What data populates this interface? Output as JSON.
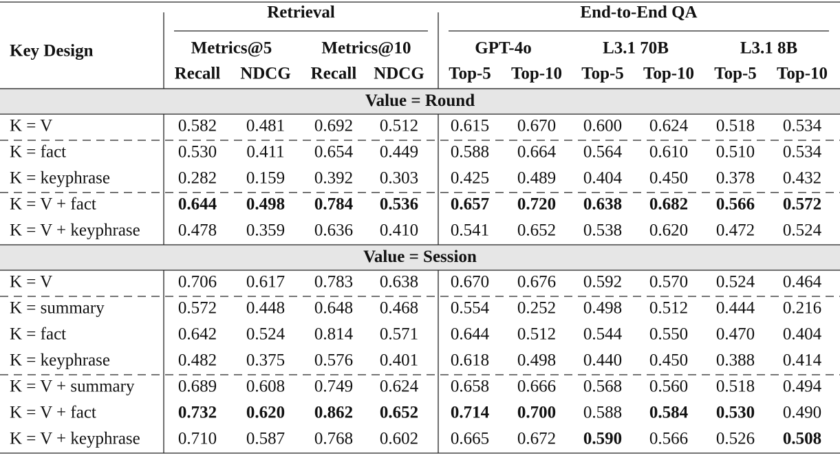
{
  "header": {
    "key_design": "Key Design",
    "groups": [
      {
        "label": "Retrieval",
        "subgroups": [
          {
            "label": "Metrics@5",
            "columns": [
              "Recall",
              "NDCG"
            ]
          },
          {
            "label": "Metrics@10",
            "columns": [
              "Recall",
              "NDCG"
            ]
          }
        ]
      },
      {
        "label": "End-to-End QA",
        "subgroups": [
          {
            "label": "GPT-4o",
            "columns": [
              "Top-5",
              "Top-10"
            ]
          },
          {
            "label": "L3.1 70B",
            "columns": [
              "Top-5",
              "Top-10"
            ]
          },
          {
            "label": "L3.1 8B",
            "columns": [
              "Top-5",
              "Top-10"
            ]
          }
        ]
      }
    ]
  },
  "sections": [
    {
      "title": "Value = Round",
      "rows": [
        {
          "key": "K = V",
          "values": [
            "0.582",
            "0.481",
            "0.692",
            "0.512",
            "0.615",
            "0.670",
            "0.600",
            "0.624",
            "0.518",
            "0.534"
          ],
          "bold": [],
          "dashed_below": true
        },
        {
          "key": "K = fact",
          "values": [
            "0.530",
            "0.411",
            "0.654",
            "0.449",
            "0.588",
            "0.664",
            "0.564",
            "0.610",
            "0.510",
            "0.534"
          ],
          "bold": [],
          "dashed_below": false
        },
        {
          "key": "K = keyphrase",
          "values": [
            "0.282",
            "0.159",
            "0.392",
            "0.303",
            "0.425",
            "0.489",
            "0.404",
            "0.450",
            "0.378",
            "0.432"
          ],
          "bold": [],
          "dashed_below": true
        },
        {
          "key": "K = V + fact",
          "values": [
            "0.644",
            "0.498",
            "0.784",
            "0.536",
            "0.657",
            "0.720",
            "0.638",
            "0.682",
            "0.566",
            "0.572"
          ],
          "bold": [
            0,
            1,
            2,
            3,
            4,
            5,
            6,
            7,
            8,
            9
          ],
          "dashed_below": false
        },
        {
          "key": "K = V + keyphrase",
          "values": [
            "0.478",
            "0.359",
            "0.636",
            "0.410",
            "0.541",
            "0.652",
            "0.538",
            "0.620",
            "0.472",
            "0.524"
          ],
          "bold": [],
          "dashed_below": false
        }
      ]
    },
    {
      "title": "Value = Session",
      "rows": [
        {
          "key": "K = V",
          "values": [
            "0.706",
            "0.617",
            "0.783",
            "0.638",
            "0.670",
            "0.676",
            "0.592",
            "0.570",
            "0.524",
            "0.464"
          ],
          "bold": [],
          "dashed_below": true
        },
        {
          "key": "K = summary",
          "values": [
            "0.572",
            "0.448",
            "0.648",
            "0.468",
            "0.554",
            "0.252",
            "0.498",
            "0.512",
            "0.444",
            "0.216"
          ],
          "bold": [],
          "dashed_below": false
        },
        {
          "key": "K = fact",
          "values": [
            "0.642",
            "0.524",
            "0.814",
            "0.571",
            "0.644",
            "0.512",
            "0.544",
            "0.550",
            "0.470",
            "0.404"
          ],
          "bold": [],
          "dashed_below": false
        },
        {
          "key": "K = keyphrase",
          "values": [
            "0.482",
            "0.375",
            "0.576",
            "0.401",
            "0.618",
            "0.498",
            "0.440",
            "0.450",
            "0.388",
            "0.414"
          ],
          "bold": [],
          "dashed_below": true
        },
        {
          "key": "K = V + summary",
          "values": [
            "0.689",
            "0.608",
            "0.749",
            "0.624",
            "0.658",
            "0.666",
            "0.568",
            "0.560",
            "0.518",
            "0.494"
          ],
          "bold": [],
          "dashed_below": false
        },
        {
          "key": "K = V + fact",
          "values": [
            "0.732",
            "0.620",
            "0.862",
            "0.652",
            "0.714",
            "0.700",
            "0.588",
            "0.584",
            "0.530",
            "0.490"
          ],
          "bold": [
            0,
            1,
            2,
            3,
            4,
            5,
            7,
            8
          ],
          "dashed_below": false
        },
        {
          "key": "K = V + keyphrase",
          "values": [
            "0.710",
            "0.587",
            "0.768",
            "0.602",
            "0.665",
            "0.672",
            "0.590",
            "0.566",
            "0.526",
            "0.508"
          ],
          "bold": [
            6,
            9
          ],
          "dashed_below": false
        }
      ]
    }
  ]
}
